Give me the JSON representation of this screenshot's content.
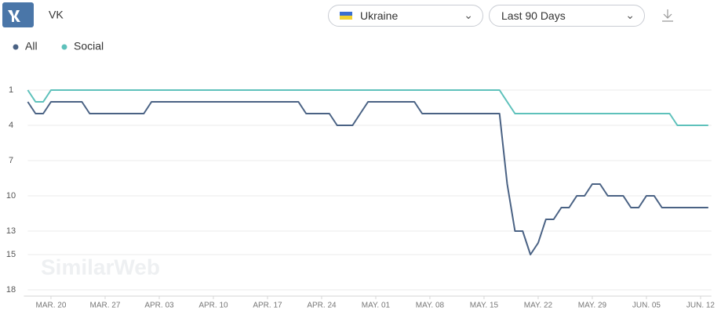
{
  "header": {
    "site": "VK",
    "country": "Ukraine",
    "period": "Last 90 Days"
  },
  "watermark": "SimilarWeb",
  "chart_data": {
    "type": "line",
    "categories": [
      null,
      null,
      null,
      "MAR. 20",
      null,
      null,
      null,
      null,
      null,
      null,
      "MAR. 27",
      null,
      null,
      null,
      null,
      null,
      null,
      "APR. 03",
      null,
      null,
      null,
      null,
      null,
      null,
      "APR. 10",
      null,
      null,
      null,
      null,
      null,
      null,
      "APR. 17",
      null,
      null,
      null,
      null,
      null,
      null,
      "APR. 24",
      null,
      null,
      null,
      null,
      null,
      null,
      "MAY. 01",
      null,
      null,
      null,
      null,
      null,
      null,
      "MAY. 08",
      null,
      null,
      null,
      null,
      null,
      null,
      "MAY. 15",
      null,
      null,
      null,
      null,
      null,
      null,
      "MAY. 22",
      null,
      null,
      null,
      null,
      null,
      null,
      "MAY. 29",
      null,
      null,
      null,
      null,
      null,
      null,
      "JUN. 05",
      null,
      null,
      null,
      null,
      null,
      null,
      "JUN. 12",
      null
    ],
    "series": [
      {
        "name": "All",
        "color": "#4a6284",
        "values": [
          2,
          3,
          3,
          2,
          2,
          2,
          2,
          2,
          3,
          3,
          3,
          3,
          3,
          3,
          3,
          3,
          2,
          2,
          2,
          2,
          2,
          2,
          2,
          2,
          2,
          2,
          2,
          2,
          2,
          2,
          2,
          2,
          2,
          2,
          2,
          2,
          3,
          3,
          3,
          3,
          4,
          4,
          4,
          3,
          2,
          2,
          2,
          2,
          2,
          2,
          2,
          3,
          3,
          3,
          3,
          3,
          3,
          3,
          3,
          3,
          3,
          3,
          9,
          13,
          13,
          15,
          14,
          12,
          12,
          11,
          11,
          10,
          10,
          9,
          9,
          10,
          10,
          10,
          11,
          11,
          10,
          10,
          11,
          11,
          11,
          11,
          11,
          11,
          11
        ]
      },
      {
        "name": "Social",
        "color": "#5ec1bb",
        "values": [
          1,
          2,
          2,
          1,
          1,
          1,
          1,
          1,
          1,
          1,
          1,
          1,
          1,
          1,
          1,
          1,
          1,
          1,
          1,
          1,
          1,
          1,
          1,
          1,
          1,
          1,
          1,
          1,
          1,
          1,
          1,
          1,
          1,
          1,
          1,
          1,
          1,
          1,
          1,
          1,
          1,
          1,
          1,
          1,
          1,
          1,
          1,
          1,
          1,
          1,
          1,
          1,
          1,
          1,
          1,
          1,
          1,
          1,
          1,
          1,
          1,
          1,
          2,
          3,
          3,
          3,
          3,
          3,
          3,
          3,
          3,
          3,
          3,
          3,
          3,
          3,
          3,
          3,
          3,
          3,
          3,
          3,
          3,
          3,
          4,
          4,
          4,
          4,
          4
        ]
      }
    ],
    "ylim": [
      1,
      18
    ],
    "yticks": [
      1,
      4,
      7,
      10,
      13,
      15,
      18
    ],
    "y_reversed": true,
    "grid": true
  }
}
